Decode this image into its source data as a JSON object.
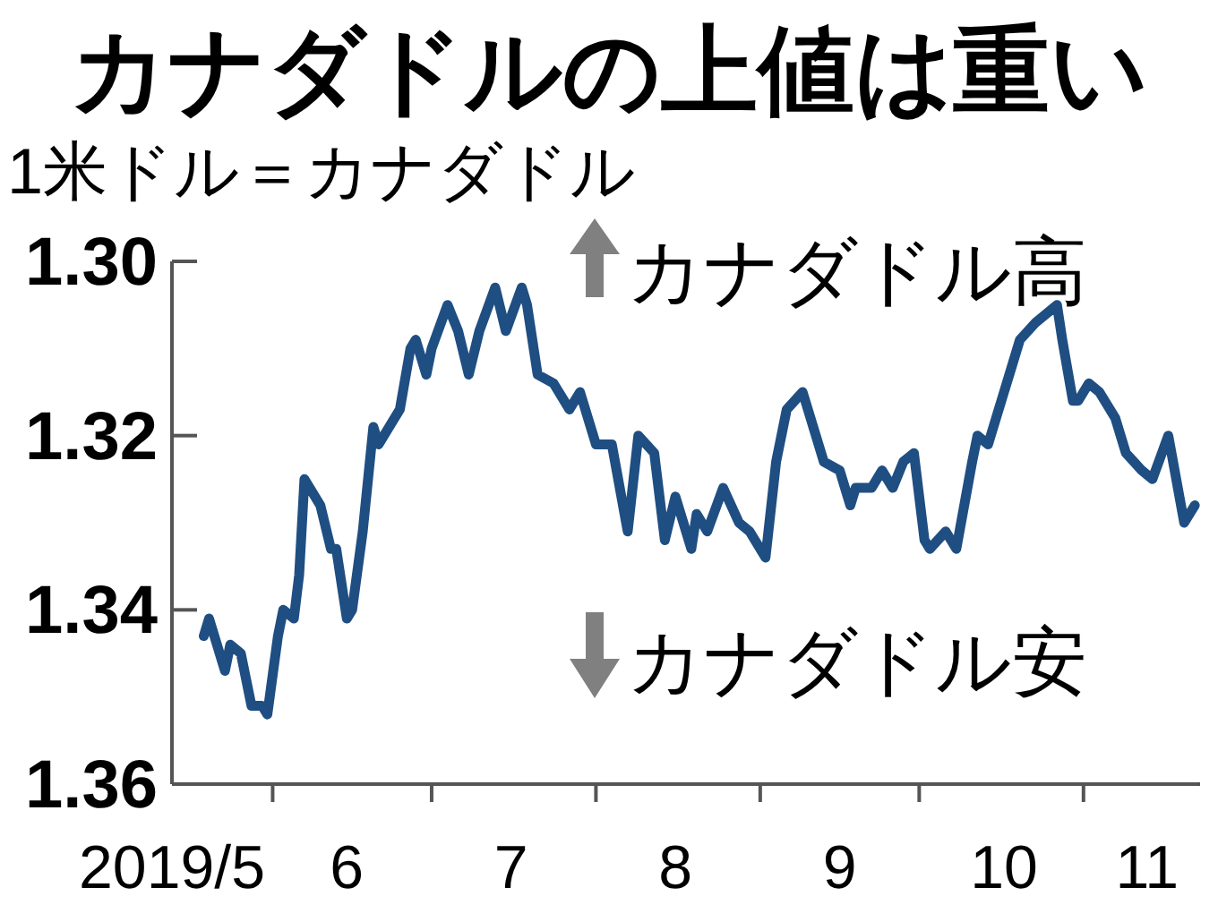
{
  "chart_data": {
    "type": "line",
    "title": "カナダドルの上値は重い",
    "ylabel": "1米ドル＝カナダドル",
    "annotations": [
      "カナダドル高",
      "カナダドル安"
    ],
    "xlim": [
      "2019-05-13",
      "2019-11-23"
    ],
    "ylim": [
      1.36,
      1.3
    ],
    "yticks": [
      {
        "value": 1.3,
        "label": "1.30"
      },
      {
        "value": 1.32,
        "label": "1.32"
      },
      {
        "value": 1.34,
        "label": "1.34"
      },
      {
        "value": 1.36,
        "label": "1.36"
      }
    ],
    "xticks": [
      {
        "value": "2019-05-13",
        "label": "2019/5"
      },
      {
        "value": "2019-06-01",
        "label": null
      },
      {
        "value": "2019-06-15",
        "label": "6"
      },
      {
        "value": "2019-07-01",
        "label": null
      },
      {
        "value": "2019-07-16",
        "label": "7"
      },
      {
        "value": "2019-08-01",
        "label": null
      },
      {
        "value": "2019-08-16",
        "label": "8"
      },
      {
        "value": "2019-09-01",
        "label": null
      },
      {
        "value": "2019-09-16",
        "label": "9"
      },
      {
        "value": "2019-10-01",
        "label": null
      },
      {
        "value": "2019-10-17",
        "label": "10"
      },
      {
        "value": "2019-11-01",
        "label": null
      },
      {
        "value": "2019-11-13",
        "label": "11"
      }
    ],
    "x": [
      "2019-05-19",
      "2019-05-20",
      "2019-05-23",
      "2019-05-24",
      "2019-05-26",
      "2019-05-28",
      "2019-05-30",
      "2019-05-31",
      "2019-06-02",
      "2019-06-03",
      "2019-06-05",
      "2019-06-06",
      "2019-06-07",
      "2019-06-10",
      "2019-06-12",
      "2019-06-13",
      "2019-06-15",
      "2019-06-16",
      "2019-06-18",
      "2019-06-20",
      "2019-06-21",
      "2019-06-23",
      "2019-06-25",
      "2019-06-27",
      "2019-06-28",
      "2019-06-30",
      "2019-07-01",
      "2019-07-04",
      "2019-07-06",
      "2019-07-08",
      "2019-07-10",
      "2019-07-13",
      "2019-07-15",
      "2019-07-18",
      "2019-07-19",
      "2019-07-21",
      "2019-07-24",
      "2019-07-27",
      "2019-07-29",
      "2019-08-01",
      "2019-08-04",
      "2019-08-07",
      "2019-08-09",
      "2019-08-12",
      "2019-08-14",
      "2019-08-16",
      "2019-08-19",
      "2019-08-20",
      "2019-08-22",
      "2019-08-25",
      "2019-08-28",
      "2019-08-30",
      "2019-09-02",
      "2019-09-04",
      "2019-09-06",
      "2019-09-09",
      "2019-09-13",
      "2019-09-16",
      "2019-09-18",
      "2019-09-19",
      "2019-09-22",
      "2019-09-24",
      "2019-09-26",
      "2019-09-28",
      "2019-09-30",
      "2019-10-02",
      "2019-10-03",
      "2019-10-06",
      "2019-10-08",
      "2019-10-11",
      "2019-10-12",
      "2019-10-14",
      "2019-10-17",
      "2019-10-18",
      "2019-10-20",
      "2019-10-23",
      "2019-10-27",
      "2019-10-28",
      "2019-10-30",
      "2019-10-31",
      "2019-11-02",
      "2019-11-04",
      "2019-11-07",
      "2019-11-09",
      "2019-11-12",
      "2019-11-14",
      "2019-11-17",
      "2019-11-20",
      "2019-11-22"
    ],
    "series": [
      {
        "color": "#1f4e82",
        "values": [
          1.343,
          1.341,
          1.347,
          1.344,
          1.345,
          1.351,
          1.351,
          1.352,
          1.343,
          1.34,
          1.341,
          1.336,
          1.325,
          1.328,
          1.333,
          1.333,
          1.341,
          1.34,
          1.331,
          1.319,
          1.321,
          1.319,
          1.317,
          1.31,
          1.309,
          1.313,
          1.31,
          1.305,
          1.308,
          1.313,
          1.308,
          1.303,
          1.308,
          1.303,
          1.305,
          1.313,
          1.314,
          1.317,
          1.315,
          1.321,
          1.321,
          1.331,
          1.32,
          1.322,
          1.332,
          1.327,
          1.333,
          1.329,
          1.331,
          1.326,
          1.33,
          1.331,
          1.334,
          1.323,
          1.317,
          1.315,
          1.323,
          1.324,
          1.328,
          1.326,
          1.326,
          1.324,
          1.326,
          1.323,
          1.322,
          1.332,
          1.333,
          1.331,
          1.333,
          1.323,
          1.32,
          1.321,
          1.315,
          1.313,
          1.309,
          1.307,
          1.305,
          1.309,
          1.316,
          1.316,
          1.314,
          1.315,
          1.318,
          1.322,
          1.324,
          1.325,
          1.32,
          1.33,
          1.328
        ]
      }
    ]
  }
}
